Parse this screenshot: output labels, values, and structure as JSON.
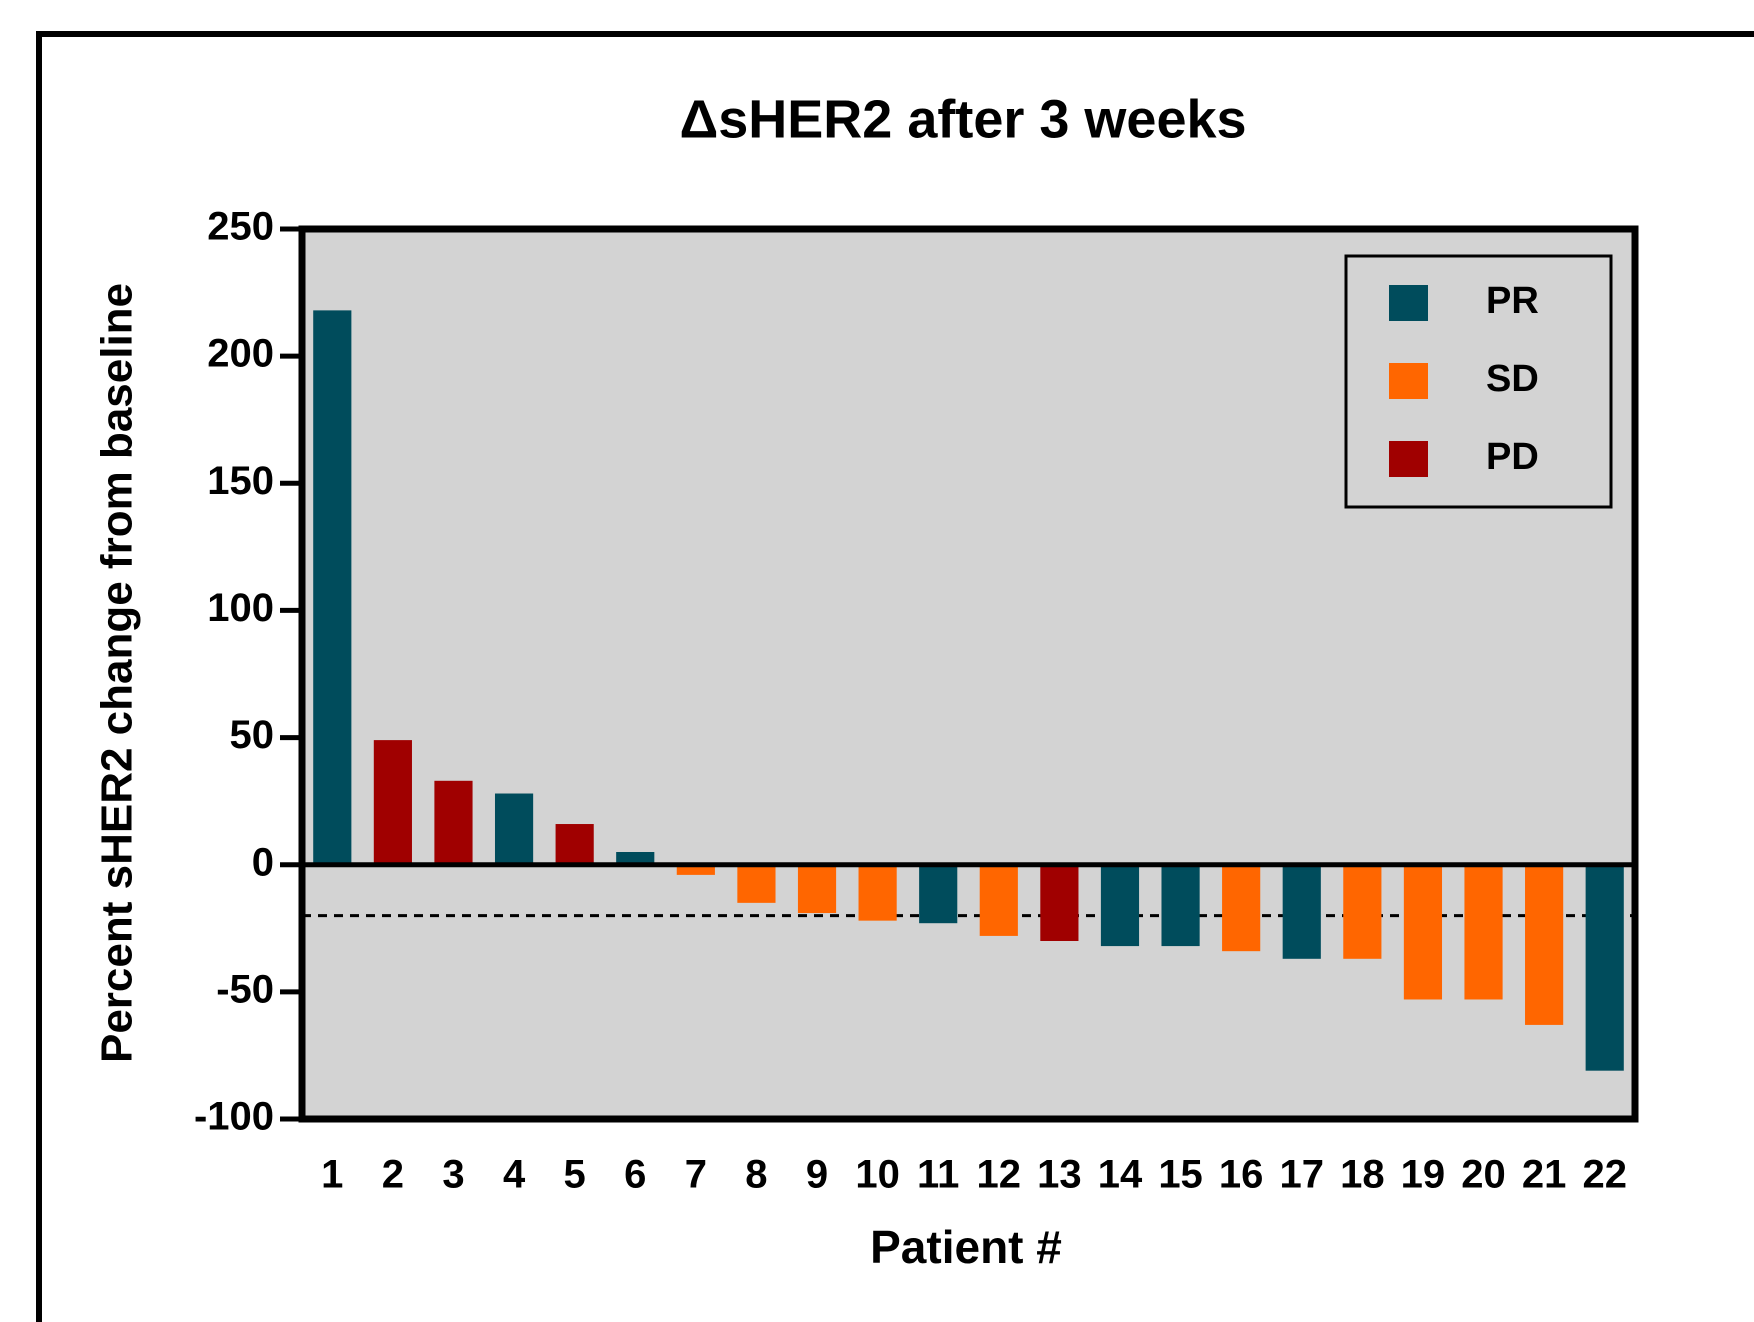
{
  "chart_data": {
    "type": "bar",
    "title": "ΔsHER2 after 3 weeks",
    "x_label": "Patient #",
    "y_label": "Percent sHER2 change from baseline",
    "categories": [
      "1",
      "2",
      "3",
      "4",
      "5",
      "6",
      "7",
      "8",
      "9",
      "10",
      "11",
      "12",
      "13",
      "14",
      "15",
      "16",
      "17",
      "18",
      "19",
      "20",
      "21",
      "22"
    ],
    "series": [
      {
        "name": "PR",
        "color": "#004c5c",
        "values": [
          218,
          null,
          null,
          28,
          null,
          5,
          null,
          null,
          null,
          null,
          -23,
          null,
          null,
          -32,
          -32,
          null,
          -37,
          null,
          null,
          null,
          null,
          -81
        ]
      },
      {
        "name": "SD",
        "color": "#ff6600",
        "values": [
          null,
          null,
          null,
          null,
          null,
          null,
          -4,
          -15,
          -19,
          -22,
          null,
          -28,
          null,
          null,
          null,
          -34,
          null,
          -37,
          -53,
          -53,
          -63,
          null
        ]
      },
      {
        "name": "PD",
        "color": "#a00000",
        "values": [
          null,
          49,
          33,
          null,
          16,
          null,
          null,
          null,
          null,
          null,
          null,
          null,
          -30,
          null,
          null,
          null,
          null,
          null,
          null,
          null,
          null,
          null
        ]
      }
    ],
    "ylim": [
      -100,
      250
    ],
    "yticks": [
      -100,
      -50,
      0,
      50,
      100,
      150,
      200,
      250
    ],
    "hlines": [
      -20
    ],
    "legend": "top-right",
    "background": "#d3d3d3"
  }
}
